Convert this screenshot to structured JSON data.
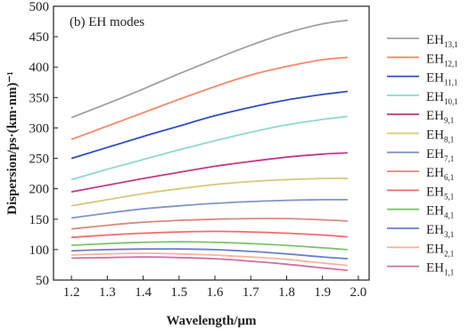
{
  "chart_data": {
    "type": "line",
    "annotation": "(b) EH modes",
    "xlabel": "Wavelength/μm",
    "ylabel": "Dispersion/ps·(km·nm)⁻¹",
    "xlim": [
      1.15,
      2.03
    ],
    "ylim": [
      50,
      500
    ],
    "xticks": [
      "1.2",
      "1.3",
      "1.4",
      "1.5",
      "1.6",
      "1.7",
      "1.8",
      "1.9",
      "2.0"
    ],
    "yticks": [
      "50",
      "100",
      "150",
      "200",
      "250",
      "300",
      "350",
      "400",
      "450",
      "500"
    ],
    "legend_position": "right",
    "x": [
      1.2,
      1.3,
      1.4,
      1.5,
      1.6,
      1.7,
      1.8,
      1.9,
      1.97
    ],
    "series": [
      {
        "name": "EH",
        "sub": "13,1",
        "color": "#a0a0a0",
        "values": [
          317,
          340,
          364,
          389,
          413,
          436,
          456,
          471,
          477
        ]
      },
      {
        "name": "EH",
        "sub": "12,1",
        "color": "#f58a6a",
        "values": [
          281,
          303,
          325,
          347,
          368,
          387,
          401,
          412,
          416
        ]
      },
      {
        "name": "EH",
        "sub": "11,1",
        "color": "#2f4ec4",
        "values": [
          250,
          268,
          286,
          303,
          320,
          334,
          346,
          355,
          360
        ]
      },
      {
        "name": "EH",
        "sub": "10,1",
        "color": "#8fd8cf",
        "values": [
          215,
          232,
          248,
          264,
          279,
          293,
          305,
          314,
          319
        ]
      },
      {
        "name": "EH",
        "sub": "9,1",
        "color": "#c23a86",
        "values": [
          195,
          206,
          217,
          227,
          237,
          245,
          252,
          257,
          259
        ]
      },
      {
        "name": "EH",
        "sub": "8,1",
        "color": "#d8c878",
        "values": [
          172,
          182,
          192,
          200,
          207,
          212,
          215,
          217,
          217
        ]
      },
      {
        "name": "EH",
        "sub": "7,1",
        "color": "#7f96c6",
        "values": [
          152,
          160,
          167,
          172,
          176,
          179,
          181,
          182,
          182
        ]
      },
      {
        "name": "EH",
        "sub": "6,1",
        "color": "#d98a7e",
        "values": [
          134,
          140,
          145,
          148,
          150,
          151,
          151,
          149,
          147
        ]
      },
      {
        "name": "EH",
        "sub": "5,1",
        "color": "#f36b6b",
        "values": [
          120,
          124,
          127,
          129,
          130,
          129,
          127,
          124,
          121
        ]
      },
      {
        "name": "EH",
        "sub": "4,1",
        "color": "#7cc46a",
        "values": [
          107,
          110,
          112,
          113,
          112,
          110,
          107,
          103,
          100
        ]
      },
      {
        "name": "EH",
        "sub": "3,1",
        "color": "#6a7fd0",
        "values": [
          98,
          100,
          101,
          101,
          100,
          97,
          93,
          88,
          85
        ]
      },
      {
        "name": "EH",
        "sub": "2,1",
        "color": "#f6b49c",
        "values": [
          91,
          93,
          94,
          93,
          91,
          88,
          84,
          78,
          74
        ]
      },
      {
        "name": "EH",
        "sub": "1,1",
        "color": "#d16fa3",
        "values": [
          86,
          87,
          88,
          87,
          85,
          81,
          76,
          70,
          66
        ]
      }
    ]
  }
}
